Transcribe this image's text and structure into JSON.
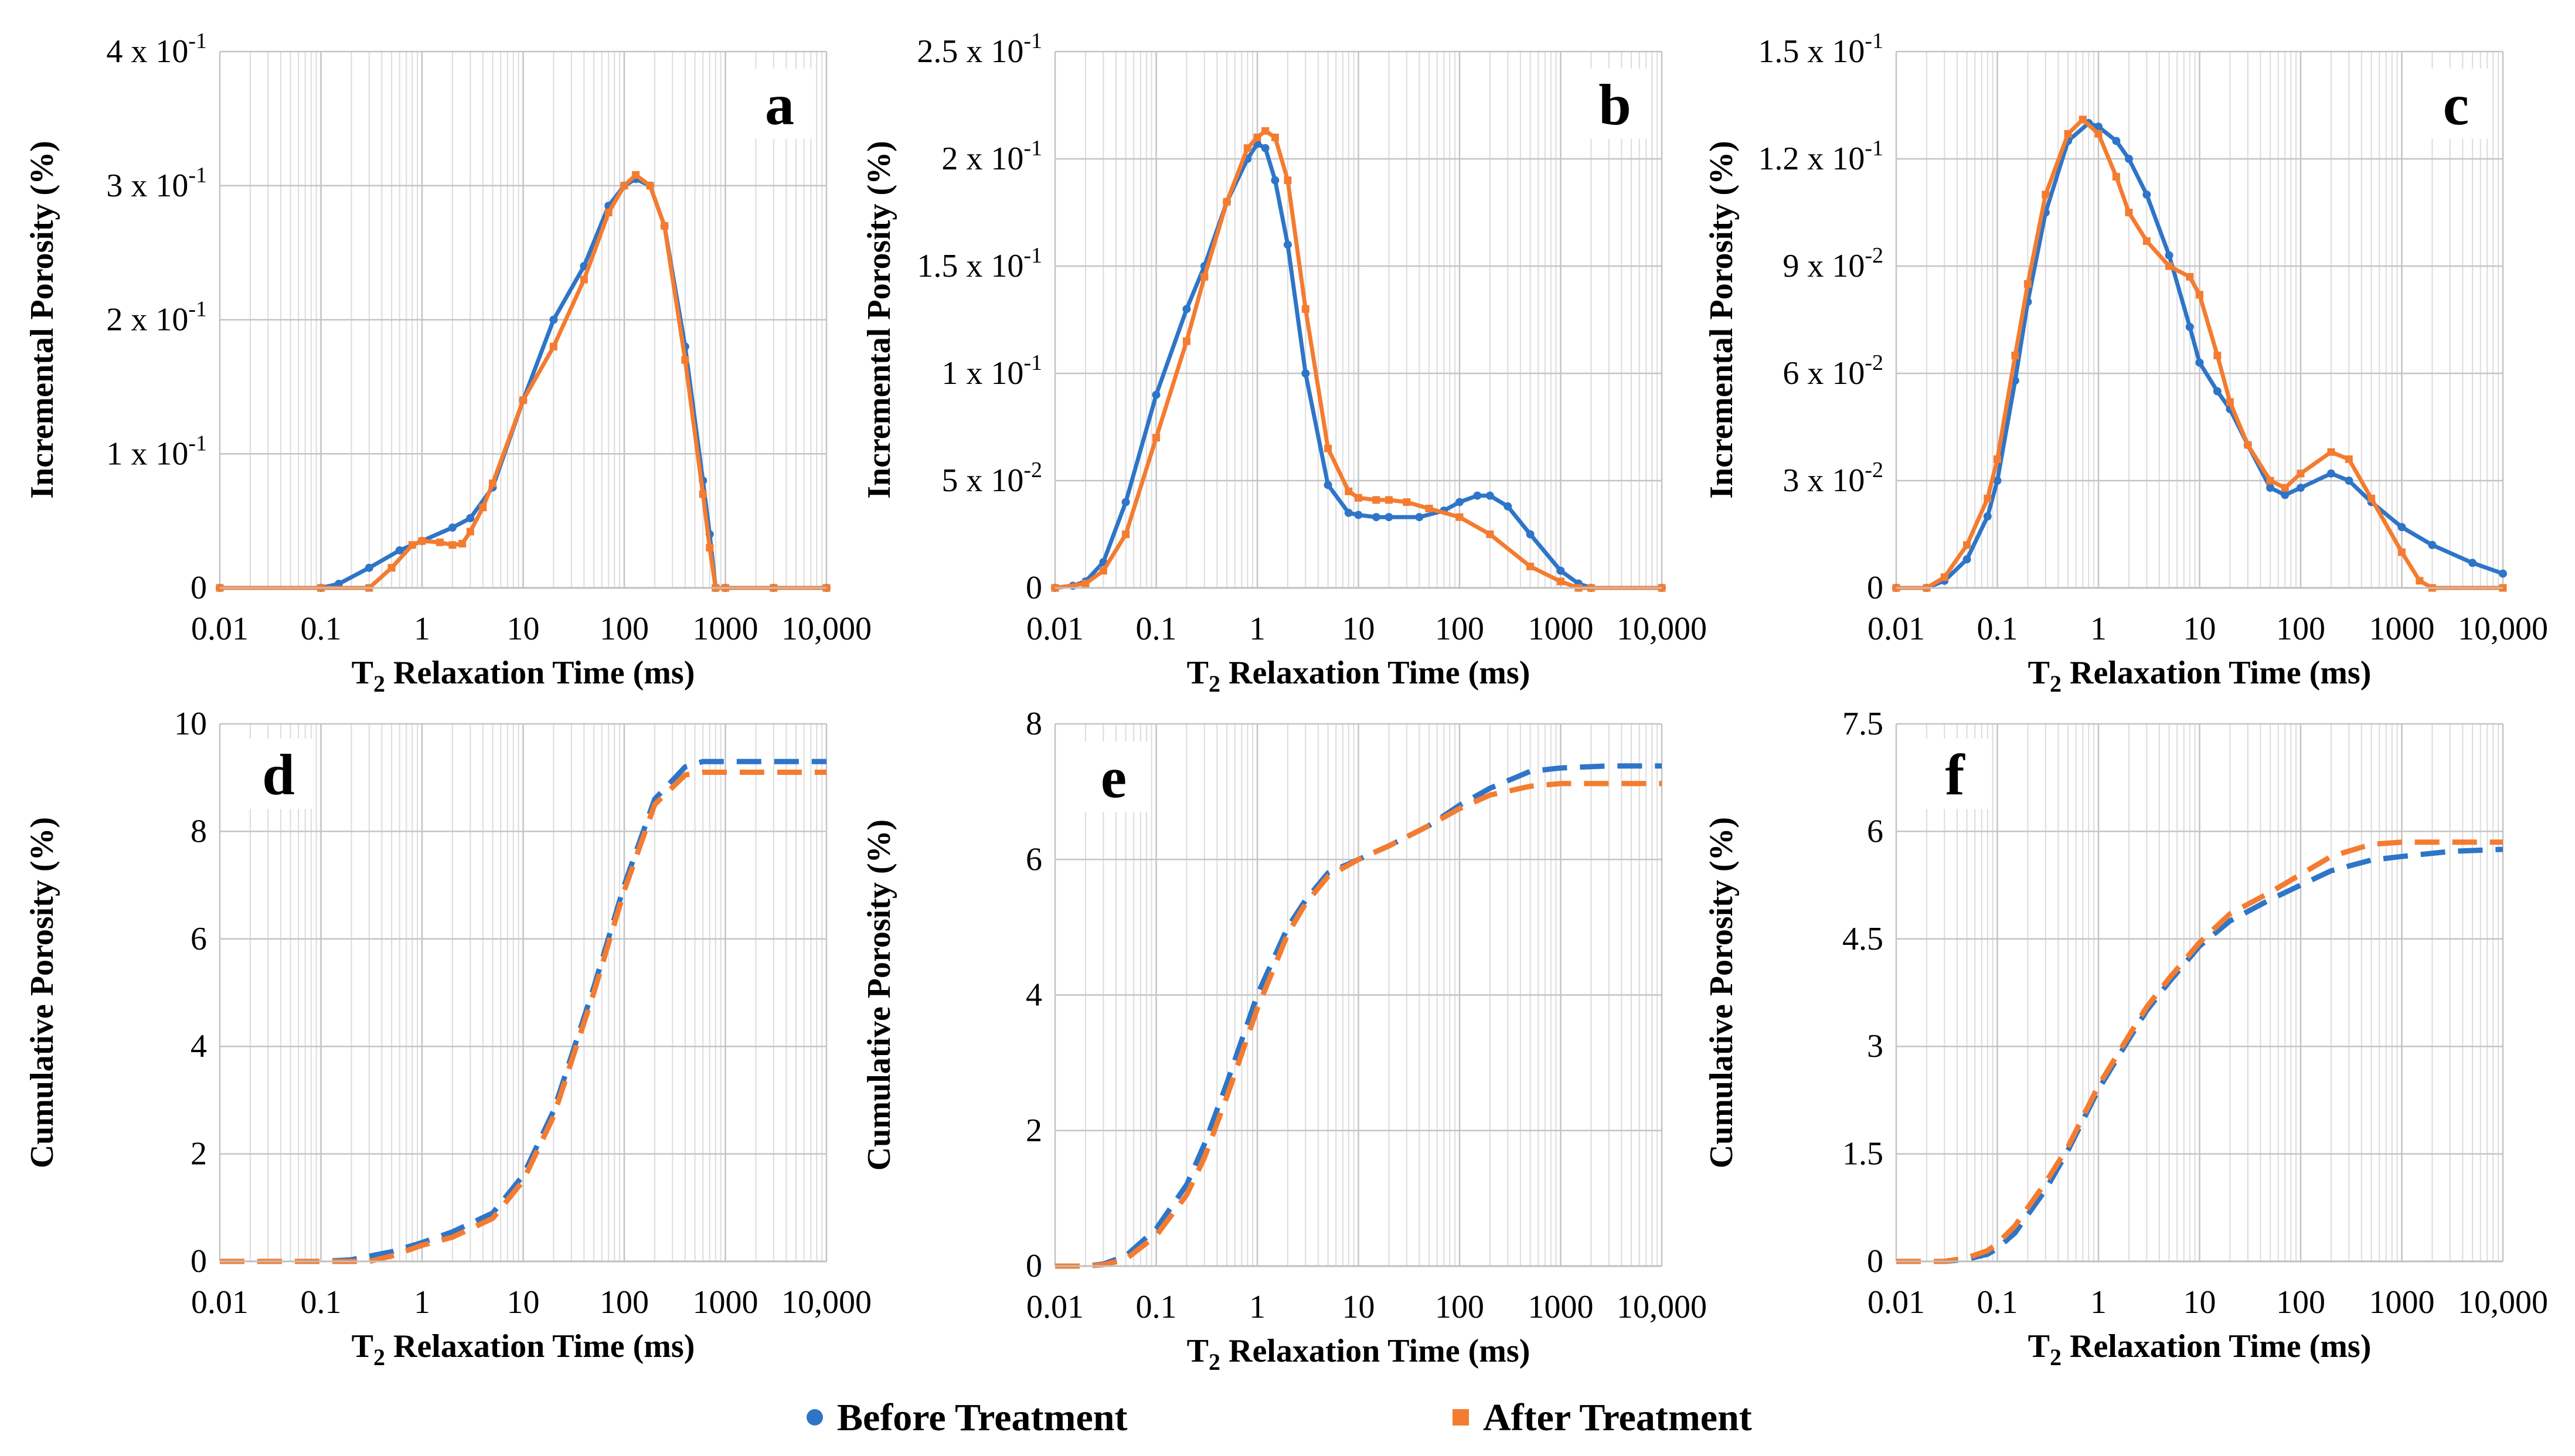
{
  "figure": {
    "legend": [
      {
        "label": "Before Treatment",
        "color": "#2E75C8",
        "marker": "circle"
      },
      {
        "label": "After Treatment",
        "color": "#F47C30",
        "marker": "square"
      }
    ]
  },
  "chart_data": [
    {
      "panel": "a",
      "type": "line",
      "xlabel_main": "T",
      "xlabel_sub": "2",
      "xlabel_rest": " Relaxation Time (ms)",
      "ylabel": "Incremental Porosity (%)",
      "xscale": "log",
      "xlim": [
        0.01,
        10000
      ],
      "xticks": [
        0.01,
        0.1,
        1,
        10,
        100,
        1000,
        10000
      ],
      "xtick_labels": [
        "0.01",
        "0.1",
        "1",
        "10",
        "100",
        "1000",
        "10,000"
      ],
      "ylim": [
        0,
        0.4
      ],
      "yticks": [
        0,
        0.1,
        0.2,
        0.3,
        0.4
      ],
      "ytick_labels": [
        {
          "m": "0",
          "e": ""
        },
        {
          "m": "1 x 10",
          "e": "-1"
        },
        {
          "m": "2 x 10",
          "e": "-1"
        },
        {
          "m": "3 x 10",
          "e": "-1"
        },
        {
          "m": "4 x 10",
          "e": "-1"
        }
      ],
      "grid": true,
      "series": [
        {
          "name": "Before Treatment",
          "style": "dotted-line",
          "x": [
            0.01,
            0.1,
            0.15,
            0.3,
            0.6,
            1,
            2,
            3,
            5,
            10,
            20,
            40,
            70,
            100,
            130,
            180,
            250,
            400,
            600,
            700,
            800,
            1000,
            3000,
            10000
          ],
          "y": [
            0,
            0,
            0.003,
            0.015,
            0.028,
            0.035,
            0.045,
            0.052,
            0.075,
            0.14,
            0.2,
            0.24,
            0.285,
            0.3,
            0.305,
            0.3,
            0.27,
            0.18,
            0.08,
            0.04,
            0,
            0,
            0,
            0
          ]
        },
        {
          "name": "After Treatment",
          "style": "dotted-line",
          "x": [
            0.01,
            0.1,
            0.3,
            0.5,
            0.8,
            1,
            1.5,
            2,
            2.5,
            3,
            4,
            5,
            10,
            20,
            40,
            70,
            100,
            130,
            180,
            250,
            400,
            600,
            700,
            800,
            1000,
            3000,
            10000
          ],
          "y": [
            0,
            0,
            0,
            0.015,
            0.032,
            0.035,
            0.034,
            0.032,
            0.033,
            0.042,
            0.06,
            0.078,
            0.14,
            0.18,
            0.23,
            0.28,
            0.3,
            0.308,
            0.3,
            0.27,
            0.17,
            0.07,
            0.03,
            0,
            0,
            0,
            0
          ]
        }
      ]
    },
    {
      "panel": "b",
      "type": "line",
      "xlabel_main": "T",
      "xlabel_sub": "2",
      "xlabel_rest": " Relaxation Time (ms)",
      "ylabel": "Incremental Porosity (%)",
      "xscale": "log",
      "xlim": [
        0.01,
        10000
      ],
      "xticks": [
        0.01,
        0.1,
        1,
        10,
        100,
        1000,
        10000
      ],
      "xtick_labels": [
        "0.01",
        "0.1",
        "1",
        "10",
        "100",
        "1000",
        "10,000"
      ],
      "ylim": [
        0,
        0.25
      ],
      "yticks": [
        0,
        0.05,
        0.1,
        0.15,
        0.2,
        0.25
      ],
      "ytick_labels": [
        {
          "m": "0",
          "e": ""
        },
        {
          "m": "5 x 10",
          "e": "-2"
        },
        {
          "m": "1 x 10",
          "e": "-1"
        },
        {
          "m": "1.5 x 10",
          "e": "-1"
        },
        {
          "m": "2 x 10",
          "e": "-1"
        },
        {
          "m": "2.5 x 10",
          "e": "-1"
        }
      ],
      "grid": true,
      "series": [
        {
          "name": "Before Treatment",
          "style": "dotted-line",
          "x": [
            0.01,
            0.015,
            0.02,
            0.03,
            0.05,
            0.1,
            0.2,
            0.3,
            0.5,
            0.8,
            1,
            1.2,
            1.5,
            2,
            3,
            5,
            8,
            10,
            15,
            20,
            40,
            70,
            100,
            150,
            200,
            300,
            500,
            1000,
            1500,
            2000,
            10000
          ],
          "y": [
            0,
            0.001,
            0.003,
            0.012,
            0.04,
            0.09,
            0.13,
            0.15,
            0.18,
            0.2,
            0.207,
            0.205,
            0.19,
            0.16,
            0.1,
            0.048,
            0.035,
            0.034,
            0.033,
            0.033,
            0.033,
            0.036,
            0.04,
            0.043,
            0.043,
            0.038,
            0.025,
            0.008,
            0.002,
            0,
            0
          ]
        },
        {
          "name": "After Treatment",
          "style": "dotted-line",
          "x": [
            0.01,
            0.02,
            0.03,
            0.05,
            0.1,
            0.2,
            0.3,
            0.5,
            0.8,
            1,
            1.2,
            1.5,
            2,
            3,
            5,
            8,
            10,
            15,
            20,
            30,
            50,
            100,
            200,
            500,
            1000,
            1500,
            2000,
            10000
          ],
          "y": [
            0,
            0.002,
            0.008,
            0.025,
            0.07,
            0.115,
            0.145,
            0.18,
            0.205,
            0.21,
            0.213,
            0.21,
            0.19,
            0.13,
            0.065,
            0.045,
            0.042,
            0.041,
            0.041,
            0.04,
            0.037,
            0.033,
            0.025,
            0.01,
            0.003,
            0,
            0,
            0
          ]
        }
      ]
    },
    {
      "panel": "c",
      "type": "line",
      "xlabel_main": "T",
      "xlabel_sub": "2",
      "xlabel_rest": " Relaxation Time (ms)",
      "ylabel": "Incremental Porosity (%)",
      "xscale": "log",
      "xlim": [
        0.01,
        10000
      ],
      "xticks": [
        0.01,
        0.1,
        1,
        10,
        100,
        1000,
        10000
      ],
      "xtick_labels": [
        "0.01",
        "0.1",
        "1",
        "10",
        "100",
        "1000",
        "10,000"
      ],
      "ylim": [
        0,
        0.15
      ],
      "yticks": [
        0,
        0.03,
        0.06,
        0.09,
        0.12,
        0.15
      ],
      "ytick_labels": [
        {
          "m": "0",
          "e": ""
        },
        {
          "m": "3 x 10",
          "e": "-2"
        },
        {
          "m": "6 x 10",
          "e": "-2"
        },
        {
          "m": "9 x 10",
          "e": "-2"
        },
        {
          "m": "1.2 x 10",
          "e": "-1"
        },
        {
          "m": "1.5 x 10",
          "e": "-1"
        }
      ],
      "grid": true,
      "series": [
        {
          "name": "Before Treatment",
          "style": "dotted-line",
          "x": [
            0.01,
            0.02,
            0.03,
            0.05,
            0.08,
            0.1,
            0.15,
            0.2,
            0.3,
            0.5,
            0.8,
            1,
            1.5,
            2,
            3,
            5,
            8,
            10,
            15,
            20,
            30,
            50,
            70,
            100,
            200,
            300,
            500,
            1000,
            2000,
            5000,
            10000
          ],
          "y": [
            0,
            0,
            0.002,
            0.008,
            0.02,
            0.03,
            0.058,
            0.08,
            0.105,
            0.125,
            0.13,
            0.129,
            0.125,
            0.12,
            0.11,
            0.093,
            0.073,
            0.063,
            0.055,
            0.05,
            0.04,
            0.028,
            0.026,
            0.028,
            0.032,
            0.03,
            0.024,
            0.017,
            0.012,
            0.007,
            0.004
          ]
        },
        {
          "name": "After Treatment",
          "style": "dotted-line",
          "x": [
            0.01,
            0.02,
            0.03,
            0.05,
            0.08,
            0.1,
            0.15,
            0.2,
            0.3,
            0.5,
            0.7,
            1,
            1.5,
            2,
            3,
            5,
            8,
            10,
            15,
            20,
            30,
            50,
            70,
            100,
            200,
            300,
            500,
            1000,
            1500,
            2000,
            10000
          ],
          "y": [
            0,
            0,
            0.003,
            0.012,
            0.025,
            0.036,
            0.065,
            0.085,
            0.11,
            0.127,
            0.131,
            0.127,
            0.115,
            0.105,
            0.097,
            0.09,
            0.087,
            0.082,
            0.065,
            0.052,
            0.04,
            0.03,
            0.028,
            0.032,
            0.038,
            0.036,
            0.025,
            0.01,
            0.002,
            0,
            0
          ]
        }
      ]
    },
    {
      "panel": "d",
      "type": "line",
      "xlabel_main": "T",
      "xlabel_sub": "2",
      "xlabel_rest": " Relaxation Time (ms)",
      "ylabel": "Cumulative Porosity (%)",
      "xscale": "log",
      "xlim": [
        0.01,
        10000
      ],
      "xticks": [
        0.01,
        0.1,
        1,
        10,
        100,
        1000,
        10000
      ],
      "xtick_labels": [
        "0.01",
        "0.1",
        "1",
        "10",
        "100",
        "1000",
        "10,000"
      ],
      "ylim": [
        0,
        10
      ],
      "yticks": [
        0,
        2,
        4,
        6,
        8,
        10
      ],
      "ytick_labels": [
        {
          "m": "0",
          "e": ""
        },
        {
          "m": "2",
          "e": ""
        },
        {
          "m": "4",
          "e": ""
        },
        {
          "m": "6",
          "e": ""
        },
        {
          "m": "8",
          "e": ""
        },
        {
          "m": "10",
          "e": ""
        }
      ],
      "grid": true,
      "series": [
        {
          "name": "Before Treatment",
          "style": "dashed",
          "x": [
            0.01,
            0.1,
            0.2,
            0.5,
            1,
            2,
            5,
            10,
            20,
            50,
            100,
            200,
            400,
            600,
            1000,
            3000,
            10000
          ],
          "y": [
            0,
            0,
            0.03,
            0.18,
            0.35,
            0.55,
            0.9,
            1.6,
            2.8,
            5.1,
            7.0,
            8.6,
            9.2,
            9.3,
            9.3,
            9.3,
            9.3
          ]
        },
        {
          "name": "After Treatment",
          "style": "dashed",
          "x": [
            0.01,
            0.1,
            0.3,
            0.5,
            1,
            2,
            5,
            10,
            20,
            50,
            100,
            200,
            400,
            600,
            1000,
            3000,
            10000
          ],
          "y": [
            0,
            0,
            0,
            0.1,
            0.3,
            0.45,
            0.8,
            1.5,
            2.7,
            5.0,
            6.9,
            8.5,
            9.05,
            9.1,
            9.1,
            9.1,
            9.1
          ]
        }
      ]
    },
    {
      "panel": "e",
      "type": "line",
      "xlabel_main": "T",
      "xlabel_sub": "2",
      "xlabel_rest": " Relaxation Time (ms)",
      "ylabel": "Cumulative Porosity (%)",
      "xscale": "log",
      "xlim": [
        0.01,
        10000
      ],
      "xticks": [
        0.01,
        0.1,
        1,
        10,
        100,
        1000,
        10000
      ],
      "xtick_labels": [
        "0.01",
        "0.1",
        "1",
        "10",
        "100",
        "1000",
        "10,000"
      ],
      "ylim": [
        0,
        8
      ],
      "yticks": [
        0,
        2,
        4,
        6,
        8
      ],
      "ytick_labels": [
        {
          "m": "0",
          "e": ""
        },
        {
          "m": "2",
          "e": ""
        },
        {
          "m": "4",
          "e": ""
        },
        {
          "m": "6",
          "e": ""
        },
        {
          "m": "8",
          "e": ""
        }
      ],
      "grid": true,
      "series": [
        {
          "name": "Before Treatment",
          "style": "dashed",
          "x": [
            0.01,
            0.02,
            0.03,
            0.05,
            0.1,
            0.2,
            0.3,
            0.5,
            1,
            2,
            3,
            5,
            10,
            20,
            50,
            100,
            200,
            500,
            1000,
            3000,
            10000
          ],
          "y": [
            0,
            0,
            0.03,
            0.15,
            0.55,
            1.2,
            1.8,
            2.7,
            4.0,
            5.0,
            5.4,
            5.8,
            6.0,
            6.2,
            6.5,
            6.8,
            7.05,
            7.3,
            7.35,
            7.38,
            7.38
          ]
        },
        {
          "name": "After Treatment",
          "style": "dashed",
          "x": [
            0.01,
            0.02,
            0.03,
            0.05,
            0.1,
            0.2,
            0.3,
            0.5,
            1,
            2,
            3,
            5,
            10,
            20,
            50,
            100,
            200,
            500,
            1000,
            3000,
            10000
          ],
          "y": [
            0,
            0,
            0.02,
            0.1,
            0.45,
            1.05,
            1.6,
            2.5,
            3.8,
            4.9,
            5.35,
            5.75,
            6.0,
            6.2,
            6.5,
            6.75,
            6.95,
            7.08,
            7.12,
            7.12,
            7.12
          ]
        }
      ]
    },
    {
      "panel": "f",
      "type": "line",
      "xlabel_main": "T",
      "xlabel_sub": "2",
      "xlabel_rest": " Relaxation Time (ms)",
      "ylabel": "Cumulative Porosity (%)",
      "xscale": "log",
      "xlim": [
        0.01,
        10000
      ],
      "xticks": [
        0.01,
        0.1,
        1,
        10,
        100,
        1000,
        10000
      ],
      "xtick_labels": [
        "0.01",
        "0.1",
        "1",
        "10",
        "100",
        "1000",
        "10,000"
      ],
      "ylim": [
        0,
        7.5
      ],
      "yticks": [
        0,
        1.5,
        3,
        4.5,
        6,
        7.5
      ],
      "ytick_labels": [
        {
          "m": "0",
          "e": ""
        },
        {
          "m": "1.5",
          "e": ""
        },
        {
          "m": "3",
          "e": ""
        },
        {
          "m": "4.5",
          "e": ""
        },
        {
          "m": "6",
          "e": ""
        },
        {
          "m": "7.5",
          "e": ""
        }
      ],
      "grid": true,
      "series": [
        {
          "name": "Before Treatment",
          "style": "dashed",
          "x": [
            0.01,
            0.03,
            0.05,
            0.08,
            0.1,
            0.15,
            0.2,
            0.3,
            0.5,
            1,
            2,
            3,
            5,
            10,
            20,
            50,
            100,
            200,
            500,
            1000,
            3000,
            10000
          ],
          "y": [
            0,
            0,
            0.03,
            0.1,
            0.18,
            0.4,
            0.65,
            1.0,
            1.55,
            2.4,
            3.1,
            3.5,
            3.9,
            4.4,
            4.75,
            5.05,
            5.25,
            5.45,
            5.6,
            5.65,
            5.72,
            5.75
          ]
        },
        {
          "name": "After Treatment",
          "style": "dashed",
          "x": [
            0.01,
            0.03,
            0.05,
            0.08,
            0.1,
            0.15,
            0.2,
            0.3,
            0.5,
            1,
            2,
            3,
            5,
            10,
            20,
            50,
            100,
            200,
            500,
            1000,
            3000,
            10000
          ],
          "y": [
            0,
            0,
            0.05,
            0.15,
            0.25,
            0.5,
            0.75,
            1.1,
            1.6,
            2.45,
            3.15,
            3.55,
            3.95,
            4.45,
            4.85,
            5.15,
            5.4,
            5.65,
            5.82,
            5.85,
            5.85,
            5.85
          ]
        }
      ]
    }
  ]
}
